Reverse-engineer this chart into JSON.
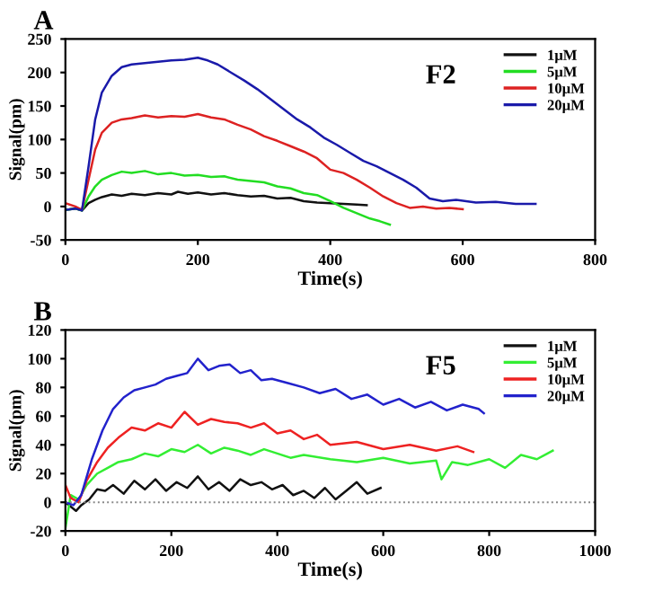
{
  "chart_data": [
    {
      "type": "line",
      "title": "A",
      "xlabel": "Time(s)",
      "ylabel": "Signal(pm)",
      "annotations": [
        "F2"
      ],
      "xlim": [
        0,
        800
      ],
      "ylim": [
        -50,
        250
      ],
      "xticks": [
        0,
        200,
        400,
        600,
        800
      ],
      "yticks": [
        -50,
        0,
        50,
        100,
        150,
        200,
        250
      ],
      "grid": false,
      "legend": "top right",
      "marker": "none",
      "line_style": "solid",
      "series": [
        {
          "name": "1μM",
          "color": "#111111",
          "x": [
            0,
            15,
            25,
            35,
            45,
            55,
            70,
            85,
            100,
            120,
            140,
            160,
            170,
            185,
            200,
            220,
            240,
            260,
            280,
            300,
            320,
            340,
            360,
            380,
            400,
            420,
            440,
            455
          ],
          "values": [
            -5,
            -3,
            -6,
            5,
            10,
            14,
            18,
            16,
            19,
            17,
            20,
            18,
            22,
            19,
            21,
            18,
            20,
            17,
            15,
            16,
            12,
            13,
            8,
            6,
            5,
            4,
            3,
            2
          ]
        },
        {
          "name": "5μM",
          "color": "#22dd22",
          "x": [
            0,
            15,
            25,
            35,
            45,
            55,
            70,
            85,
            100,
            120,
            140,
            160,
            180,
            200,
            220,
            240,
            260,
            280,
            300,
            320,
            340,
            360,
            380,
            400,
            420,
            440,
            460,
            475,
            490
          ],
          "values": [
            -5,
            -3,
            -6,
            15,
            30,
            40,
            47,
            52,
            50,
            53,
            48,
            50,
            46,
            47,
            44,
            45,
            40,
            38,
            36,
            30,
            27,
            20,
            17,
            8,
            -2,
            -10,
            -18,
            -22,
            -27
          ]
        },
        {
          "name": "10μM",
          "color": "#dd2222",
          "x": [
            0,
            15,
            25,
            35,
            45,
            55,
            70,
            85,
            100,
            120,
            140,
            160,
            180,
            200,
            220,
            240,
            260,
            280,
            300,
            320,
            340,
            360,
            380,
            400,
            420,
            440,
            460,
            480,
            500,
            520,
            540,
            560,
            580,
            600
          ],
          "values": [
            5,
            0,
            -5,
            40,
            85,
            110,
            125,
            130,
            132,
            136,
            133,
            135,
            134,
            138,
            133,
            130,
            122,
            115,
            105,
            98,
            90,
            82,
            72,
            55,
            50,
            40,
            28,
            15,
            5,
            -2,
            0,
            -3,
            -2,
            -4
          ]
        },
        {
          "name": "20μM",
          "color": "#1a1aaa",
          "x": [
            0,
            15,
            25,
            35,
            45,
            55,
            70,
            85,
            100,
            120,
            140,
            160,
            180,
            200,
            215,
            230,
            250,
            270,
            290,
            310,
            330,
            350,
            370,
            390,
            410,
            430,
            450,
            470,
            490,
            510,
            530,
            550,
            570,
            590,
            620,
            650,
            680,
            710
          ],
          "values": [
            -5,
            -3,
            -6,
            60,
            130,
            170,
            195,
            208,
            212,
            214,
            216,
            218,
            219,
            222,
            218,
            212,
            200,
            188,
            175,
            160,
            145,
            130,
            118,
            103,
            92,
            80,
            68,
            60,
            50,
            40,
            28,
            12,
            8,
            10,
            6,
            7,
            4,
            4
          ]
        }
      ]
    },
    {
      "type": "line",
      "title": "B",
      "xlabel": "Time(s)",
      "ylabel": "Signal(pm)",
      "annotations": [
        "F5"
      ],
      "xlim": [
        0,
        1000
      ],
      "ylim": [
        -20,
        120
      ],
      "xticks": [
        0,
        200,
        400,
        600,
        800,
        1000
      ],
      "yticks": [
        -20,
        0,
        20,
        40,
        60,
        80,
        100,
        120
      ],
      "grid": false,
      "legend": "top right",
      "marker": "none",
      "line_style": "solid",
      "ref_lines": [
        {
          "axis": "y",
          "value": 0,
          "color": "#888888",
          "line_style": "dotted"
        }
      ],
      "series": [
        {
          "name": "1μM",
          "color": "#111111",
          "x": [
            0,
            10,
            20,
            30,
            45,
            60,
            75,
            90,
            110,
            130,
            150,
            170,
            190,
            210,
            230,
            250,
            270,
            290,
            310,
            330,
            350,
            370,
            390,
            410,
            430,
            450,
            470,
            490,
            510,
            530,
            550,
            570,
            595
          ],
          "values": [
            0,
            -3,
            -6,
            -2,
            2,
            9,
            8,
            12,
            6,
            15,
            9,
            16,
            8,
            14,
            10,
            18,
            9,
            14,
            8,
            16,
            12,
            14,
            9,
            12,
            5,
            8,
            3,
            10,
            2,
            8,
            14,
            6,
            10
          ]
        },
        {
          "name": "5μM",
          "color": "#33ee33",
          "x": [
            0,
            10,
            25,
            40,
            60,
            80,
            100,
            125,
            150,
            175,
            200,
            225,
            250,
            275,
            300,
            325,
            350,
            375,
            400,
            425,
            450,
            500,
            550,
            600,
            650,
            700,
            710,
            730,
            760,
            800,
            830,
            860,
            890,
            920
          ],
          "values": [
            -18,
            5,
            2,
            12,
            20,
            24,
            28,
            30,
            34,
            32,
            37,
            35,
            40,
            34,
            38,
            36,
            33,
            37,
            34,
            31,
            33,
            30,
            28,
            31,
            27,
            29,
            16,
            28,
            26,
            30,
            24,
            33,
            30,
            36
          ]
        },
        {
          "name": "10μM",
          "color": "#ee2222",
          "x": [
            0,
            10,
            25,
            40,
            60,
            80,
            100,
            125,
            150,
            175,
            200,
            225,
            250,
            275,
            300,
            325,
            350,
            375,
            400,
            425,
            450,
            475,
            500,
            550,
            600,
            650,
            700,
            740,
            770
          ],
          "values": [
            12,
            3,
            0,
            15,
            28,
            38,
            45,
            52,
            50,
            55,
            52,
            63,
            54,
            58,
            56,
            55,
            52,
            55,
            48,
            50,
            44,
            47,
            40,
            42,
            37,
            40,
            36,
            39,
            35
          ]
        },
        {
          "name": "20μM",
          "color": "#2222cc",
          "x": [
            0,
            15,
            30,
            50,
            70,
            90,
            110,
            130,
            150,
            170,
            190,
            210,
            230,
            250,
            270,
            290,
            310,
            330,
            350,
            370,
            390,
            420,
            450,
            480,
            510,
            540,
            570,
            600,
            630,
            660,
            690,
            720,
            750,
            780,
            790
          ],
          "values": [
            0,
            -2,
            5,
            30,
            50,
            65,
            73,
            78,
            80,
            82,
            86,
            88,
            90,
            100,
            92,
            95,
            96,
            90,
            92,
            85,
            86,
            83,
            80,
            76,
            79,
            72,
            75,
            68,
            72,
            66,
            70,
            64,
            68,
            65,
            62
          ]
        }
      ]
    }
  ]
}
